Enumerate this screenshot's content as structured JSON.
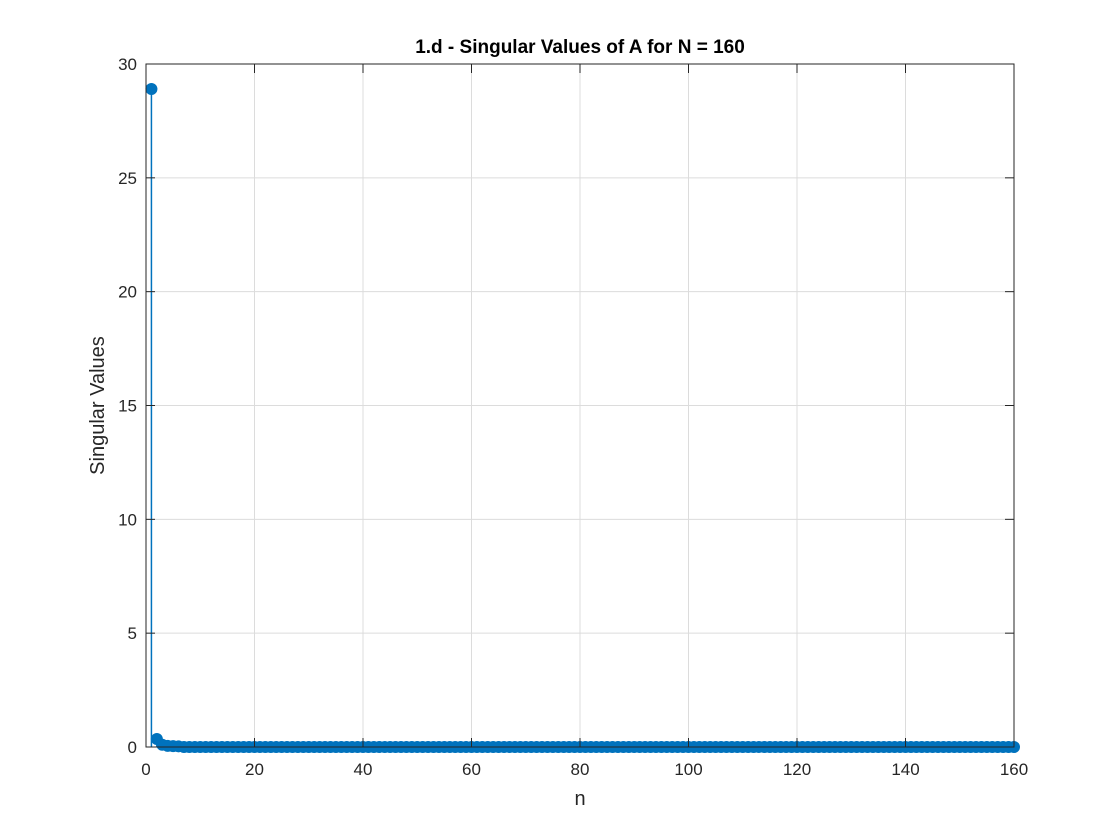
{
  "chart_data": {
    "type": "scatter",
    "style": "stem",
    "title": "1.d - Singular Values of A for N = 160",
    "xlabel": "n",
    "ylabel": "Singular Values",
    "xlim": [
      0,
      160
    ],
    "ylim": [
      0,
      30
    ],
    "xticks": [
      "0",
      "20",
      "40",
      "60",
      "80",
      "100",
      "120",
      "140",
      "160"
    ],
    "yticks": [
      "0",
      "5",
      "10",
      "15",
      "20",
      "25",
      "30"
    ],
    "grid": true,
    "box": true,
    "color": "#0072BD",
    "series": [
      {
        "x_start": 1,
        "x_end": 160,
        "leading_values": [
          28.9,
          0.35,
          0.1,
          0.05,
          0.04,
          0.03
        ],
        "tail_value": 0.0
      }
    ]
  }
}
